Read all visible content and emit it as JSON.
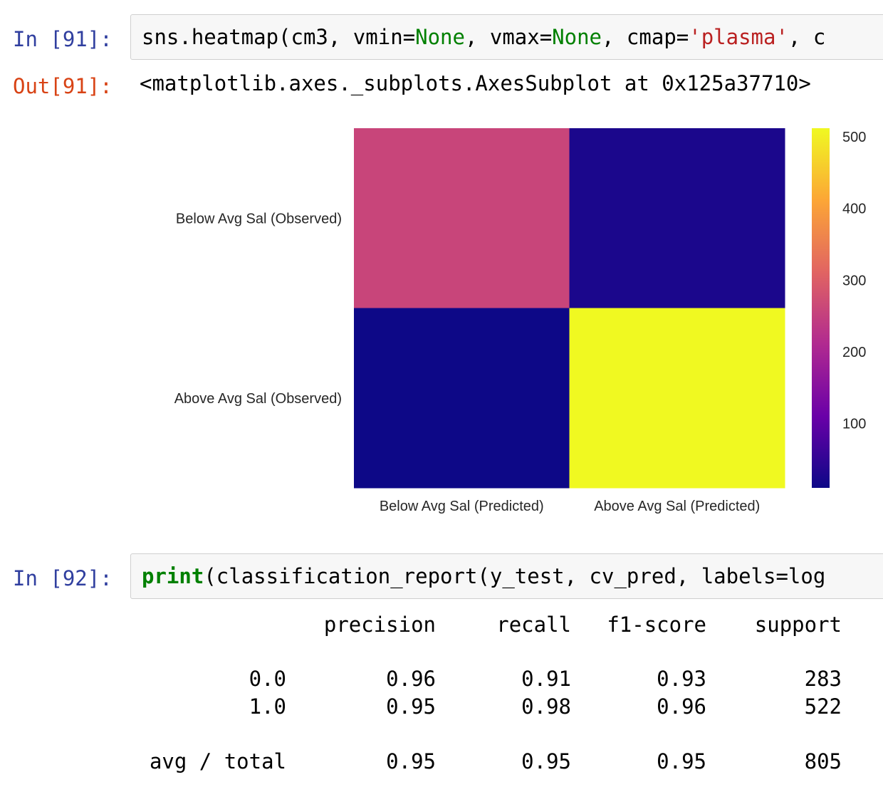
{
  "cell1": {
    "in_prompt": "In [91]:",
    "code": {
      "p1": "sns.heatmap(cm3, vmin=",
      "k1": "None",
      "p2": ", vmax=",
      "k2": "None",
      "p3": ", cmap=",
      "s1": "'plasma'",
      "p4": ", c"
    },
    "out_prompt": "Out[91]:",
    "out_text": "<matplotlib.axes._subplots.AxesSubplot at 0x125a37710>"
  },
  "chart_data": {
    "type": "heatmap",
    "cmap": "plasma",
    "row_labels": [
      "Below Avg Sal (Observed)",
      "Above Avg Sal (Observed)"
    ],
    "col_labels": [
      "Below Avg Sal (Predicted)",
      "Above Avg Sal (Predicted)"
    ],
    "values": [
      [
        258,
        25
      ],
      [
        10,
        512
      ]
    ],
    "colorbar": {
      "range": [
        10,
        512
      ],
      "ticks": [
        100,
        200,
        300,
        400,
        500
      ]
    }
  },
  "cell2": {
    "in_prompt": "In [92]:",
    "code": {
      "fn": "print",
      "rest": "(classification_report(y_test, cv_pred, labels=log"
    }
  },
  "report": {
    "headers": [
      "precision",
      "recall",
      "f1-score",
      "support"
    ],
    "rows": [
      {
        "label": "0.0",
        "values": [
          "0.96",
          "0.91",
          "0.93",
          "283"
        ]
      },
      {
        "label": "1.0",
        "values": [
          "0.95",
          "0.98",
          "0.96",
          "522"
        ]
      }
    ],
    "total": {
      "label": "avg / total",
      "values": [
        "0.95",
        "0.95",
        "0.95",
        "805"
      ]
    }
  }
}
